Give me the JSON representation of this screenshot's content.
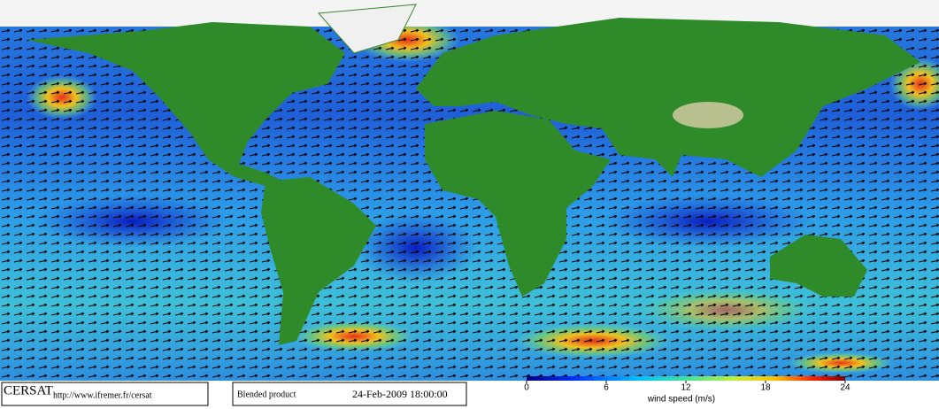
{
  "logo": "CERSAT",
  "url": "http://www.ifremer.fr/cersat",
  "product": "Blended product",
  "date": "24-Feb-2009 18:00:00",
  "colorbar": {
    "label": "wind speed (m/s)",
    "range": [
      0,
      24
    ],
    "ticks": [
      0,
      6,
      12,
      18,
      24
    ]
  }
}
